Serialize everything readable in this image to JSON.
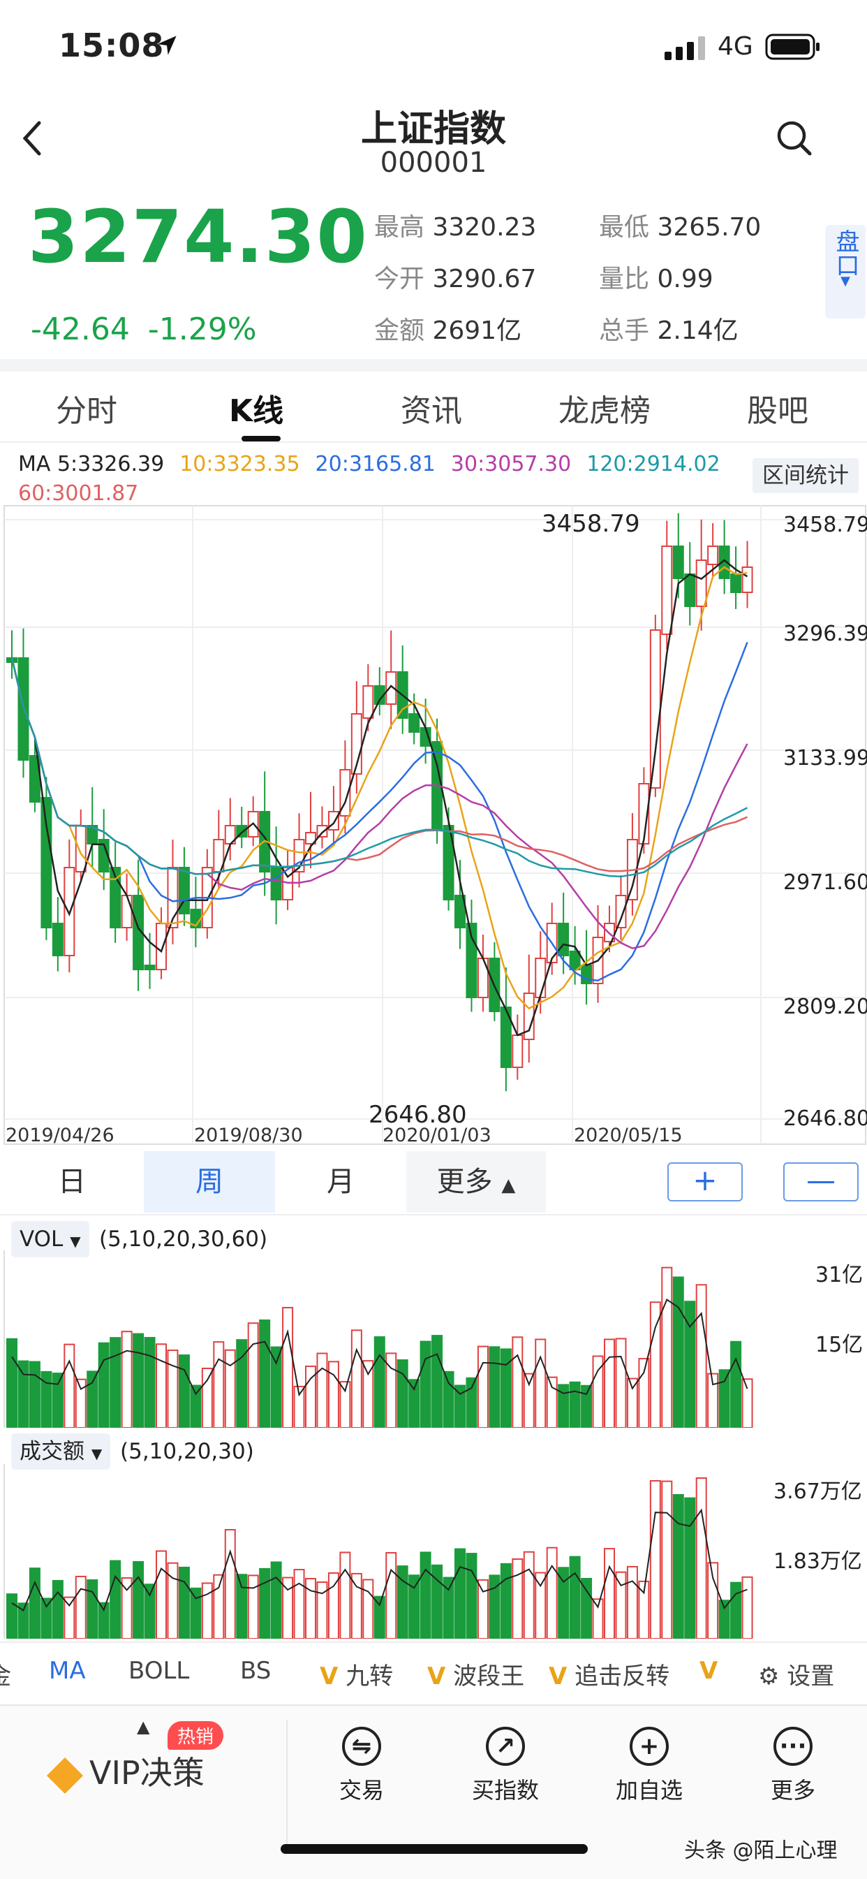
{
  "status_bar": {
    "time": "15:08",
    "network": "4G"
  },
  "header": {
    "title": "上证指数",
    "code": "000001"
  },
  "quote": {
    "price": "3274.30",
    "change": "-42.64",
    "change_pct": "-1.29%",
    "stats": [
      {
        "label": "最高",
        "value": "3320.23"
      },
      {
        "label": "最低",
        "value": "3265.70"
      },
      {
        "label": "今开",
        "value": "3290.67"
      },
      {
        "label": "量比",
        "value": "0.99"
      },
      {
        "label": "金额",
        "value": "2691亿"
      },
      {
        "label": "总手",
        "value": "2.14亿"
      }
    ],
    "pankou": "盘口"
  },
  "tabs": [
    "分时",
    "K线",
    "资讯",
    "龙虎榜",
    "股吧"
  ],
  "ma_legend": [
    {
      "text": "MA 5:3326.39",
      "color": "#222222"
    },
    {
      "text": "10:3323.35",
      "color": "#e8a317"
    },
    {
      "text": "20:3165.81",
      "color": "#2b6de0"
    },
    {
      "text": "30:3057.30",
      "color": "#b43ea6"
    },
    {
      "text": "120:2914.02",
      "color": "#1e9aa8"
    },
    {
      "text": "60:3001.87",
      "color": "#e06060"
    }
  ],
  "range_stats_button": "区间统计",
  "kline": {
    "y_labels": [
      "3458.79",
      "3296.39",
      "3133.99",
      "2971.60",
      "2809.20",
      "2646.80"
    ],
    "x_labels": [
      "2019/04/26",
      "2019/08/30",
      "2020/01/03",
      "2020/05/15"
    ],
    "high_label": "3458.79",
    "low_label": "2646.80"
  },
  "periods": [
    "日",
    "周",
    "月",
    "更多"
  ],
  "zoom": {
    "plus": "+",
    "minus": "—"
  },
  "vol_panel": {
    "selector": "VOL",
    "params": "(5,10,20,30,60)",
    "y_labels": [
      "31亿",
      "15亿"
    ]
  },
  "amount_panel": {
    "selector": "成交额",
    "params": "(5,10,20,30)",
    "y_labels": [
      "3.67万亿",
      "1.83万亿"
    ]
  },
  "indicators": {
    "items": [
      "金",
      "MA",
      "BOLL",
      "BS"
    ],
    "vip_items": [
      "九转",
      "波段王",
      "追击反转"
    ],
    "settings": "设置",
    "vip_mark": "V"
  },
  "bottom_bar": {
    "vip": "VIP决策",
    "hot": "热销",
    "items": [
      {
        "label": "交易",
        "icon": "⇋"
      },
      {
        "label": "买指数",
        "icon": "↗"
      },
      {
        "label": "加自选",
        "icon": "+"
      },
      {
        "label": "更多",
        "icon": "···"
      }
    ]
  },
  "watermark": "头条 @陌上心理",
  "chart_data": {
    "type": "candlestick",
    "title": "上证指数 K线 (周)",
    "ylim": [
      2646.8,
      3458.79
    ],
    "high": 3458.79,
    "low": 2646.8,
    "x_ticks": [
      "2019/04/26",
      "2019/08/30",
      "2020/01/03",
      "2020/05/15"
    ],
    "ma": {
      "MA5": 3326.39,
      "MA10": 3323.35,
      "MA20": 3165.81,
      "MA30": 3057.3,
      "MA60": 3001.87,
      "MA120": 2914.02
    }
  }
}
